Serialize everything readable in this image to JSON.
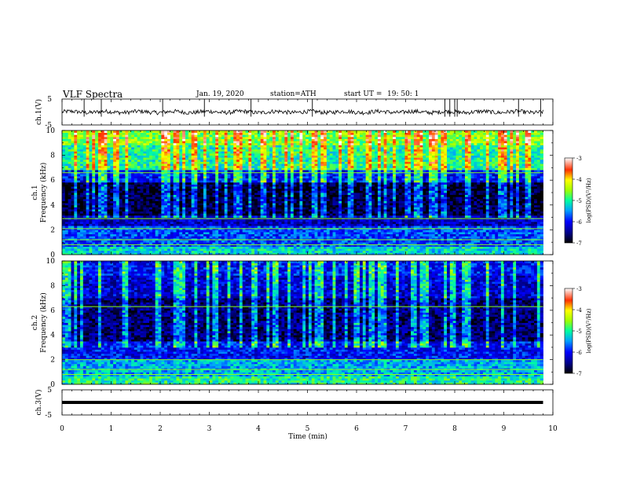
{
  "header": {
    "title": "VLF Spectra",
    "date": "Jan. 19, 2020",
    "station": "station=ATH",
    "start_label": "start UT =",
    "start_time": "19: 50: 1"
  },
  "chart_data": [
    {
      "type": "line",
      "panel": "ch.1 waveform",
      "ylabel": "ch.1(V)",
      "ylim": [
        -5,
        5
      ],
      "yticks": [
        "5",
        "-5"
      ],
      "xlim": [
        0,
        10
      ],
      "baseline": 0,
      "noise_amplitude": 0.8,
      "spike_times": [
        0.45,
        0.8,
        2.05,
        2.9,
        3.85,
        5.1,
        7.8,
        7.9,
        8.0,
        8.05,
        9.3,
        9.75
      ]
    },
    {
      "type": "heatmap",
      "panel": "ch.1 spectrogram",
      "ylabel": "ch.1\nFrequency (kHz)",
      "ylim": [
        0,
        10
      ],
      "yticks": [
        "0",
        "2",
        "4",
        "6",
        "8",
        "10"
      ],
      "xlim": [
        0,
        9.8
      ],
      "z_scale": "log",
      "band_levels": [
        {
          "f_low": 0.0,
          "f_high": 0.6,
          "log_psd": -5.2
        },
        {
          "f_low": 0.6,
          "f_high": 2.4,
          "log_psd": -5.8
        },
        {
          "f_low": 2.4,
          "f_high": 3.2,
          "log_psd": -6.3
        },
        {
          "f_low": 3.2,
          "f_high": 5.8,
          "log_psd": -6.8
        },
        {
          "f_low": 5.8,
          "f_high": 6.8,
          "log_psd": -6.0
        },
        {
          "f_low": 6.8,
          "f_high": 8.8,
          "log_psd": -5.0
        },
        {
          "f_low": 8.8,
          "f_high": 10.0,
          "log_psd": -4.6
        }
      ],
      "tone_lines_khz": [
        0.8,
        1.2,
        2.1,
        2.9,
        6.6
      ],
      "colorbar": {
        "label": "log(PSD)(V²/Hz)",
        "range": [
          -7,
          -3
        ],
        "ticks": [
          "-3",
          "-4",
          "-5",
          "-6",
          "-7"
        ]
      }
    },
    {
      "type": "heatmap",
      "panel": "ch.2 spectrogram",
      "ylabel": "ch.2\nFrequency (kHz)",
      "ylim": [
        0,
        10
      ],
      "yticks": [
        "0",
        "2",
        "4",
        "6",
        "8",
        "10"
      ],
      "xlim": [
        0,
        9.8
      ],
      "z_scale": "log",
      "band_levels": [
        {
          "f_low": 0.0,
          "f_high": 0.6,
          "log_psd": -5.0
        },
        {
          "f_low": 0.6,
          "f_high": 2.0,
          "log_psd": -5.4
        },
        {
          "f_low": 2.0,
          "f_high": 3.5,
          "log_psd": -6.0
        },
        {
          "f_low": 3.5,
          "f_high": 7.0,
          "log_psd": -6.6
        },
        {
          "f_low": 7.0,
          "f_high": 8.8,
          "log_psd": -6.2
        },
        {
          "f_low": 8.8,
          "f_high": 10.0,
          "log_psd": -6.0
        }
      ],
      "tone_lines_khz": [
        0.8,
        1.2,
        2.0,
        6.3
      ],
      "colorbar": {
        "label": "log(PSD)(V²/Hz)",
        "range": [
          -7,
          -3
        ],
        "ticks": [
          "-3",
          "-4",
          "-5",
          "-6",
          "-7"
        ]
      }
    },
    {
      "type": "line",
      "panel": "ch.3 waveform",
      "ylabel": "ch.3(V)",
      "ylim": [
        -5,
        5
      ],
      "yticks": [
        "5",
        "-5"
      ],
      "xlim": [
        0,
        10
      ],
      "baseline": 0,
      "noise_amplitude": 0.3,
      "spike_times": []
    }
  ],
  "xaxis": {
    "label": "Time (min)",
    "ticks": [
      "0",
      "1",
      "2",
      "3",
      "4",
      "5",
      "6",
      "7",
      "8",
      "9",
      "10"
    ],
    "range": [
      0,
      10
    ]
  },
  "colors": {
    "background": "#ffffff",
    "waveform": "#000000",
    "frame": "#000000"
  }
}
